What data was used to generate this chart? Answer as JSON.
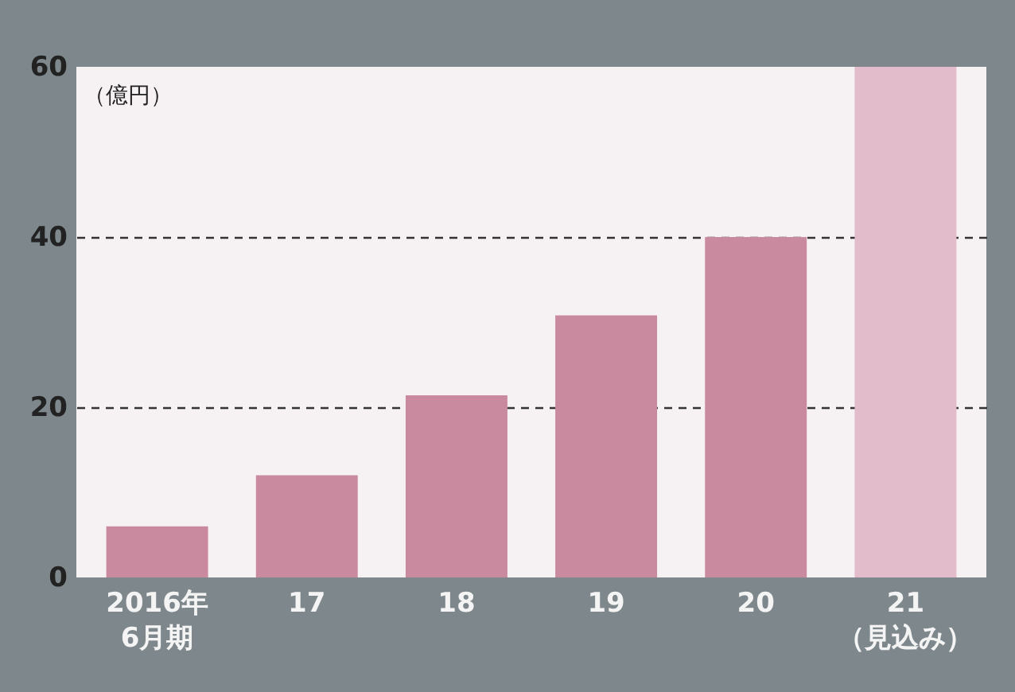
{
  "chart_data": {
    "type": "bar",
    "ylabel": "（億円）",
    "categories": [
      "2016年\n6月期",
      "17",
      "18",
      "19",
      "20",
      "21\n（見込み）"
    ],
    "values": [
      6,
      12,
      21.4,
      30.8,
      40,
      60
    ],
    "colors": [
      "#c98aa0",
      "#c98aa0",
      "#c98aa0",
      "#c98aa0",
      "#c98aa0",
      "#e2bccb"
    ],
    "ylim": [
      0,
      60
    ],
    "yticks": [
      0,
      20,
      40,
      60
    ],
    "grid": "y",
    "line_style": "dashed"
  }
}
